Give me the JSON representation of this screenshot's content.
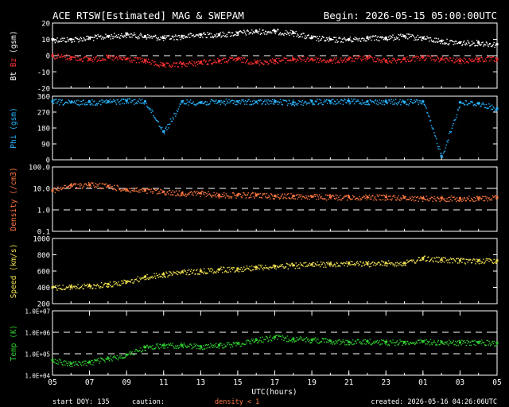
{
  "header": {
    "title": "ACE RTSW[Estimated] MAG & SWEPAM",
    "begin": "Begin: 2026-05-15 05:00:00UTC"
  },
  "footer": {
    "start_doy": "start DOY: 135",
    "caution_label": "caution:",
    "caution_text": "density < 1",
    "created": "created: 2026-05-16 04:26:06UTC"
  },
  "colors": {
    "background": "#000000",
    "axes": "#ffffff",
    "bt": "#ffffff",
    "bz": "#ff3030",
    "phi": "#28b4ff",
    "density": "#ff7840",
    "speed": "#f0e050",
    "temp": "#30d030"
  },
  "chart_data": [
    {
      "type": "scatter",
      "ylabel": [
        "Bt",
        "Bz",
        "(gsm)"
      ],
      "ylim": [
        -20,
        20
      ],
      "yticks": [
        "20",
        "10",
        "0",
        "-10",
        "-20"
      ],
      "dashed_lines": [
        0
      ],
      "series": [
        {
          "name": "Bt",
          "color": "#ffffff",
          "x": [
            0,
            1,
            2,
            3,
            4,
            5,
            6,
            7,
            8,
            9,
            10,
            11,
            12,
            13,
            14,
            15,
            16,
            17,
            18,
            19,
            20,
            21,
            22,
            23,
            24
          ],
          "y": [
            10,
            10,
            11,
            12,
            13,
            12,
            11,
            12,
            13,
            13,
            14,
            15,
            15,
            14,
            11,
            10,
            10,
            11,
            11,
            12,
            11,
            9,
            8,
            8,
            7
          ]
        },
        {
          "name": "Bz",
          "color": "#ff3030",
          "x": [
            0,
            1,
            2,
            3,
            4,
            5,
            6,
            7,
            8,
            9,
            10,
            11,
            12,
            13,
            14,
            15,
            16,
            17,
            18,
            19,
            20,
            21,
            22,
            23,
            24
          ],
          "y": [
            0,
            -1,
            -2,
            -1,
            -2,
            -3,
            -6,
            -5,
            -4,
            -3,
            -2,
            -4,
            -3,
            -2,
            -2,
            -3,
            -2,
            -1,
            -3,
            -2,
            -1,
            -2,
            -3,
            -2,
            -2
          ]
        }
      ]
    },
    {
      "type": "scatter",
      "ylabel": [
        "Phi (gsm)"
      ],
      "ylim": [
        0,
        360
      ],
      "yticks": [
        "360",
        "270",
        "180",
        "90",
        "0"
      ],
      "dashed_lines": [],
      "series": [
        {
          "name": "Phi",
          "color": "#28b4ff",
          "x": [
            0,
            1,
            2,
            3,
            4,
            5,
            6,
            7,
            8,
            9,
            10,
            11,
            12,
            13,
            14,
            15,
            16,
            17,
            18,
            19,
            20,
            21,
            22,
            23,
            24
          ],
          "y": [
            330,
            325,
            328,
            330,
            335,
            330,
            160,
            330,
            325,
            330,
            330,
            328,
            330,
            325,
            330,
            330,
            332,
            330,
            330,
            328,
            330,
            20,
            325,
            320,
            290
          ]
        }
      ]
    },
    {
      "type": "scatter",
      "ylabel": [
        "Density (/cm3)"
      ],
      "ylim": [
        0.1,
        100
      ],
      "log_scale": true,
      "yticks": [
        "100.0",
        "10.0",
        "1.0",
        "0.1"
      ],
      "dashed_lines": [
        10,
        1
      ],
      "series": [
        {
          "name": "Density",
          "color": "#ff7840",
          "x": [
            0,
            1,
            2,
            3,
            4,
            5,
            6,
            7,
            8,
            9,
            10,
            11,
            12,
            13,
            14,
            15,
            16,
            17,
            18,
            19,
            20,
            21,
            22,
            23,
            24
          ],
          "y": [
            8,
            14,
            15,
            13,
            9,
            8,
            7,
            6,
            6,
            5,
            5,
            5,
            4.5,
            4.5,
            4.2,
            4,
            4,
            4,
            4,
            3.8,
            3.5,
            3.5,
            3.5,
            3.5,
            3.8
          ]
        }
      ]
    },
    {
      "type": "scatter",
      "ylabel": [
        "Speed (km/s)"
      ],
      "ylim": [
        200,
        1000
      ],
      "yticks": [
        "1000",
        "800",
        "600",
        "400",
        "200"
      ],
      "dashed_lines": [],
      "series": [
        {
          "name": "Speed",
          "color": "#f0e050",
          "x": [
            0,
            1,
            2,
            3,
            4,
            5,
            6,
            7,
            8,
            9,
            10,
            11,
            12,
            13,
            14,
            15,
            16,
            17,
            18,
            19,
            20,
            21,
            22,
            23,
            24
          ],
          "y": [
            400,
            410,
            420,
            440,
            470,
            530,
            560,
            590,
            600,
            620,
            630,
            650,
            660,
            670,
            680,
            690,
            700,
            690,
            700,
            700,
            760,
            740,
            730,
            730,
            730
          ]
        }
      ]
    },
    {
      "type": "scatter",
      "ylabel": [
        "Temp (K)"
      ],
      "ylim": [
        10000,
        10000000
      ],
      "log_scale": true,
      "yticks": [
        "1.0E+07",
        "1.0E+06",
        "1.0E+05",
        "1.0E+04"
      ],
      "dashed_lines": [
        1000000,
        100000
      ],
      "series": [
        {
          "name": "Temp",
          "color": "#30d030",
          "x": [
            0,
            1,
            2,
            3,
            4,
            5,
            6,
            7,
            8,
            9,
            10,
            11,
            12,
            13,
            14,
            15,
            16,
            17,
            18,
            19,
            20,
            21,
            22,
            23,
            24
          ],
          "y": [
            50000,
            35000,
            40000,
            60000,
            90000,
            200000,
            250000,
            250000,
            220000,
            250000,
            300000,
            450000,
            600000,
            500000,
            450000,
            400000,
            350000,
            380000,
            350000,
            350000,
            380000,
            350000,
            330000,
            350000,
            320000
          ]
        }
      ]
    }
  ],
  "xaxis": {
    "label": "UTC(hours)",
    "ticks": [
      "05",
      "07",
      "09",
      "11",
      "13",
      "15",
      "17",
      "19",
      "21",
      "23",
      "01",
      "03",
      "05"
    ],
    "range": [
      0,
      24
    ]
  }
}
